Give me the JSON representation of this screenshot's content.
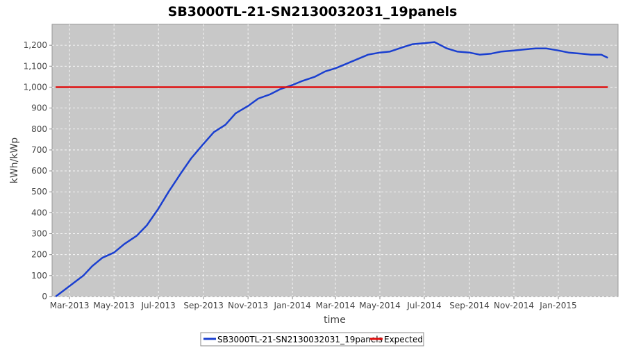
{
  "chart_data": {
    "type": "line",
    "title": "SB3000TL-21-SN2130032031_19panels",
    "xlabel": "time",
    "ylabel": "kWh/kWp",
    "x_axis_type": "date",
    "x_range": [
      "2013-02-05",
      "2015-03-24"
    ],
    "x_tick_labels": [
      "Mar-2013",
      "May-2013",
      "Jul-2013",
      "Sep-2013",
      "Nov-2013",
      "Jan-2014",
      "Mar-2014",
      "May-2014",
      "Jul-2014",
      "Sep-2014",
      "Nov-2014",
      "Jan-2015"
    ],
    "x_tick_dates": [
      "2013-03-01",
      "2013-05-01",
      "2013-07-01",
      "2013-09-01",
      "2013-11-01",
      "2014-01-01",
      "2014-03-01",
      "2014-05-01",
      "2014-07-01",
      "2014-09-01",
      "2014-11-01",
      "2015-01-01"
    ],
    "ylim": [
      0,
      1300
    ],
    "y_ticks": [
      0,
      100,
      200,
      300,
      400,
      500,
      600,
      700,
      800,
      900,
      1000,
      1100,
      1200
    ],
    "y_tick_labels": [
      "0",
      "100",
      "200",
      "300",
      "400",
      "500",
      "600",
      "700",
      "800",
      "900",
      "1,000",
      "1,100",
      "1,200"
    ],
    "grid": true,
    "plot_background": "#c8c8c8",
    "grid_color": "#ffffff",
    "legend_position": "bottom",
    "series": [
      {
        "name": "SB3000TL-21-SN2130032031_19panels",
        "color": "#1a3fd0",
        "x": [
          "2013-02-10",
          "2013-03-01",
          "2013-03-20",
          "2013-04-01",
          "2013-04-15",
          "2013-05-01",
          "2013-05-15",
          "2013-06-01",
          "2013-06-15",
          "2013-07-01",
          "2013-07-15",
          "2013-08-01",
          "2013-08-15",
          "2013-09-01",
          "2013-09-15",
          "2013-10-01",
          "2013-10-15",
          "2013-11-01",
          "2013-11-15",
          "2013-12-01",
          "2013-12-15",
          "2014-01-01",
          "2014-01-15",
          "2014-02-01",
          "2014-02-15",
          "2014-03-01",
          "2014-03-15",
          "2014-04-01",
          "2014-04-15",
          "2014-05-01",
          "2014-05-15",
          "2014-06-01",
          "2014-06-15",
          "2014-07-01",
          "2014-07-15",
          "2014-08-01",
          "2014-08-15",
          "2014-09-01",
          "2014-09-15",
          "2014-10-01",
          "2014-10-15",
          "2014-11-01",
          "2014-11-15",
          "2014-12-01",
          "2014-12-15",
          "2015-01-01",
          "2015-01-15",
          "2015-02-01",
          "2015-02-15",
          "2015-03-01",
          "2015-03-10"
        ],
        "y": [
          0,
          50,
          100,
          145,
          185,
          210,
          250,
          290,
          340,
          420,
          500,
          590,
          660,
          730,
          785,
          820,
          875,
          910,
          945,
          965,
          990,
          1010,
          1030,
          1050,
          1075,
          1090,
          1110,
          1135,
          1155,
          1165,
          1170,
          1190,
          1205,
          1210,
          1215,
          1185,
          1170,
          1165,
          1155,
          1160,
          1170,
          1175,
          1180,
          1185,
          1185,
          1175,
          1165,
          1160,
          1155,
          1155,
          1140
        ]
      },
      {
        "name": "Expected",
        "color": "#e01010",
        "x": [
          "2013-02-10",
          "2015-03-10"
        ],
        "y": [
          1000,
          1000
        ]
      }
    ]
  }
}
